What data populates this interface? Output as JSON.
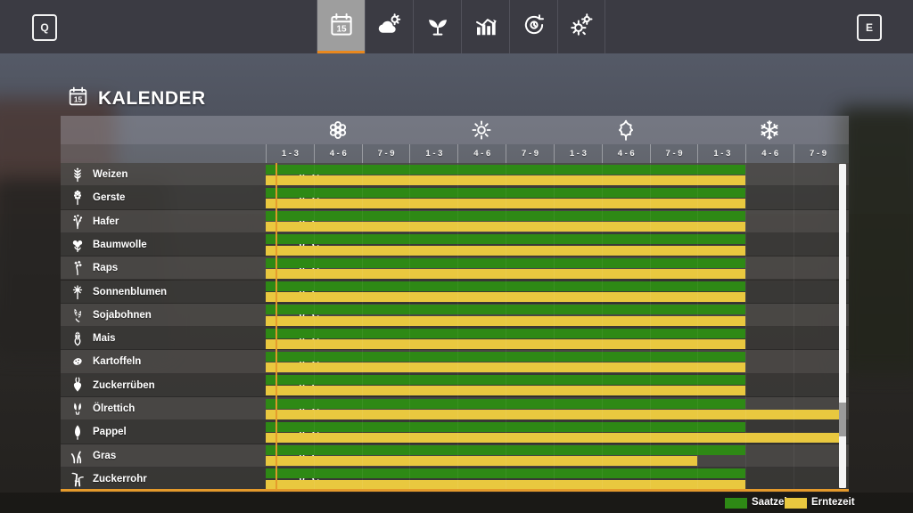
{
  "topbar": {
    "left_key": "Q",
    "right_key": "E",
    "tabs": [
      {
        "name": "calendar",
        "icon": "calendar-icon",
        "active": true,
        "badge": "15"
      },
      {
        "name": "weather",
        "icon": "weather-icon",
        "active": false
      },
      {
        "name": "crops",
        "icon": "sprout-icon",
        "active": false
      },
      {
        "name": "statistics",
        "icon": "stats-icon",
        "active": false
      },
      {
        "name": "cycle",
        "icon": "cycle-icon",
        "active": false
      },
      {
        "name": "settings",
        "icon": "gears-icon",
        "active": false
      }
    ]
  },
  "header": {
    "title": "KALENDER",
    "icon": "calendar-icon",
    "icon_day": "15"
  },
  "calendar": {
    "seasons": [
      {
        "name": "spring",
        "icon": "flower-icon"
      },
      {
        "name": "summer",
        "icon": "sun-icon"
      },
      {
        "name": "autumn",
        "icon": "leaf-icon"
      },
      {
        "name": "winter",
        "icon": "snowflake-icon"
      }
    ],
    "period_labels": [
      "1 - 3",
      "4 - 6",
      "7 - 9",
      "1 - 3",
      "4 - 6",
      "7 - 9",
      "1 - 3",
      "4 - 6",
      "7 - 9",
      "1 - 3",
      "4 - 6",
      "7 - 9"
    ],
    "current_period_marker_col": 0.2,
    "rows": [
      {
        "crop": "Weizen",
        "icon": "wheat-icon",
        "temp": "0 °C",
        "saat": [
          0,
          10
        ],
        "ernte": [
          0,
          10
        ]
      },
      {
        "crop": "Gerste",
        "icon": "barley-icon",
        "temp": "0 °C",
        "saat": [
          0,
          10
        ],
        "ernte": [
          0,
          10
        ]
      },
      {
        "crop": "Hafer",
        "icon": "oat-icon",
        "temp": "0 °C",
        "saat": [
          0,
          10
        ],
        "ernte": [
          0,
          10
        ]
      },
      {
        "crop": "Baumwolle",
        "icon": "cotton-icon",
        "temp": "0 °C",
        "saat": [
          0,
          10
        ],
        "ernte": [
          0,
          10
        ]
      },
      {
        "crop": "Raps",
        "icon": "canola-icon",
        "temp": "0 °C",
        "saat": [
          0,
          10
        ],
        "ernte": [
          0,
          10
        ]
      },
      {
        "crop": "Sonnenblumen",
        "icon": "sunflower-icon",
        "temp": "0 °C",
        "saat": [
          0,
          10
        ],
        "ernte": [
          0,
          10
        ]
      },
      {
        "crop": "Sojabohnen",
        "icon": "soybean-icon",
        "temp": "0 °C",
        "saat": [
          0,
          10
        ],
        "ernte": [
          0,
          10
        ]
      },
      {
        "crop": "Mais",
        "icon": "corn-icon",
        "temp": "0 °C",
        "saat": [
          0,
          10
        ],
        "ernte": [
          0,
          10
        ]
      },
      {
        "crop": "Kartoffeln",
        "icon": "potato-icon",
        "temp": "0 °C",
        "saat": [
          0,
          10
        ],
        "ernte": [
          0,
          10
        ]
      },
      {
        "crop": "Zuckerrüben",
        "icon": "sugarbeet-icon",
        "temp": "0 °C",
        "saat": [
          0,
          10
        ],
        "ernte": [
          0,
          10
        ]
      },
      {
        "crop": "Ölrettich",
        "icon": "radish-icon",
        "temp": "0 °C",
        "saat": [
          0,
          10
        ],
        "ernte": [
          0,
          12
        ]
      },
      {
        "crop": "Pappel",
        "icon": "poplar-icon",
        "temp": "0 °C",
        "saat": [
          0,
          10
        ],
        "ernte": [
          0,
          12
        ]
      },
      {
        "crop": "Gras",
        "icon": "grass-icon",
        "temp": "0 °C",
        "saat": [
          0,
          10
        ],
        "ernte": [
          0,
          9
        ]
      },
      {
        "crop": "Zuckerrohr",
        "icon": "sugarcane-icon",
        "temp": "0 °C",
        "saat": [
          0,
          10
        ],
        "ernte": [
          0,
          10
        ]
      }
    ],
    "legend": [
      {
        "label": "Saatzeit",
        "color": "#2e8915"
      },
      {
        "label": "Erntezeit",
        "color": "#e9c83f"
      }
    ]
  },
  "colors": {
    "saatzeit_green": "#2e8915",
    "erntezeit_yellow": "#e9c83f",
    "accent_orange": "#e59a2b",
    "tab_underline": "#e8881e"
  }
}
